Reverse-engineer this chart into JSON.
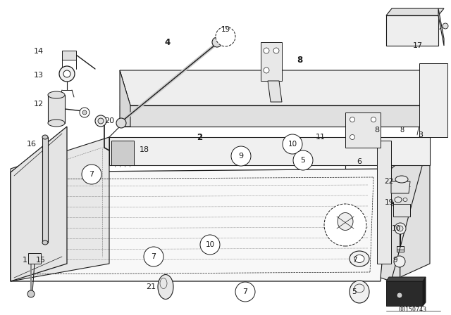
{
  "bg_color": "#ffffff",
  "line_color": "#1a1a1a",
  "watermark": "00150743",
  "fig_w": 6.4,
  "fig_h": 4.48,
  "dpi": 100
}
